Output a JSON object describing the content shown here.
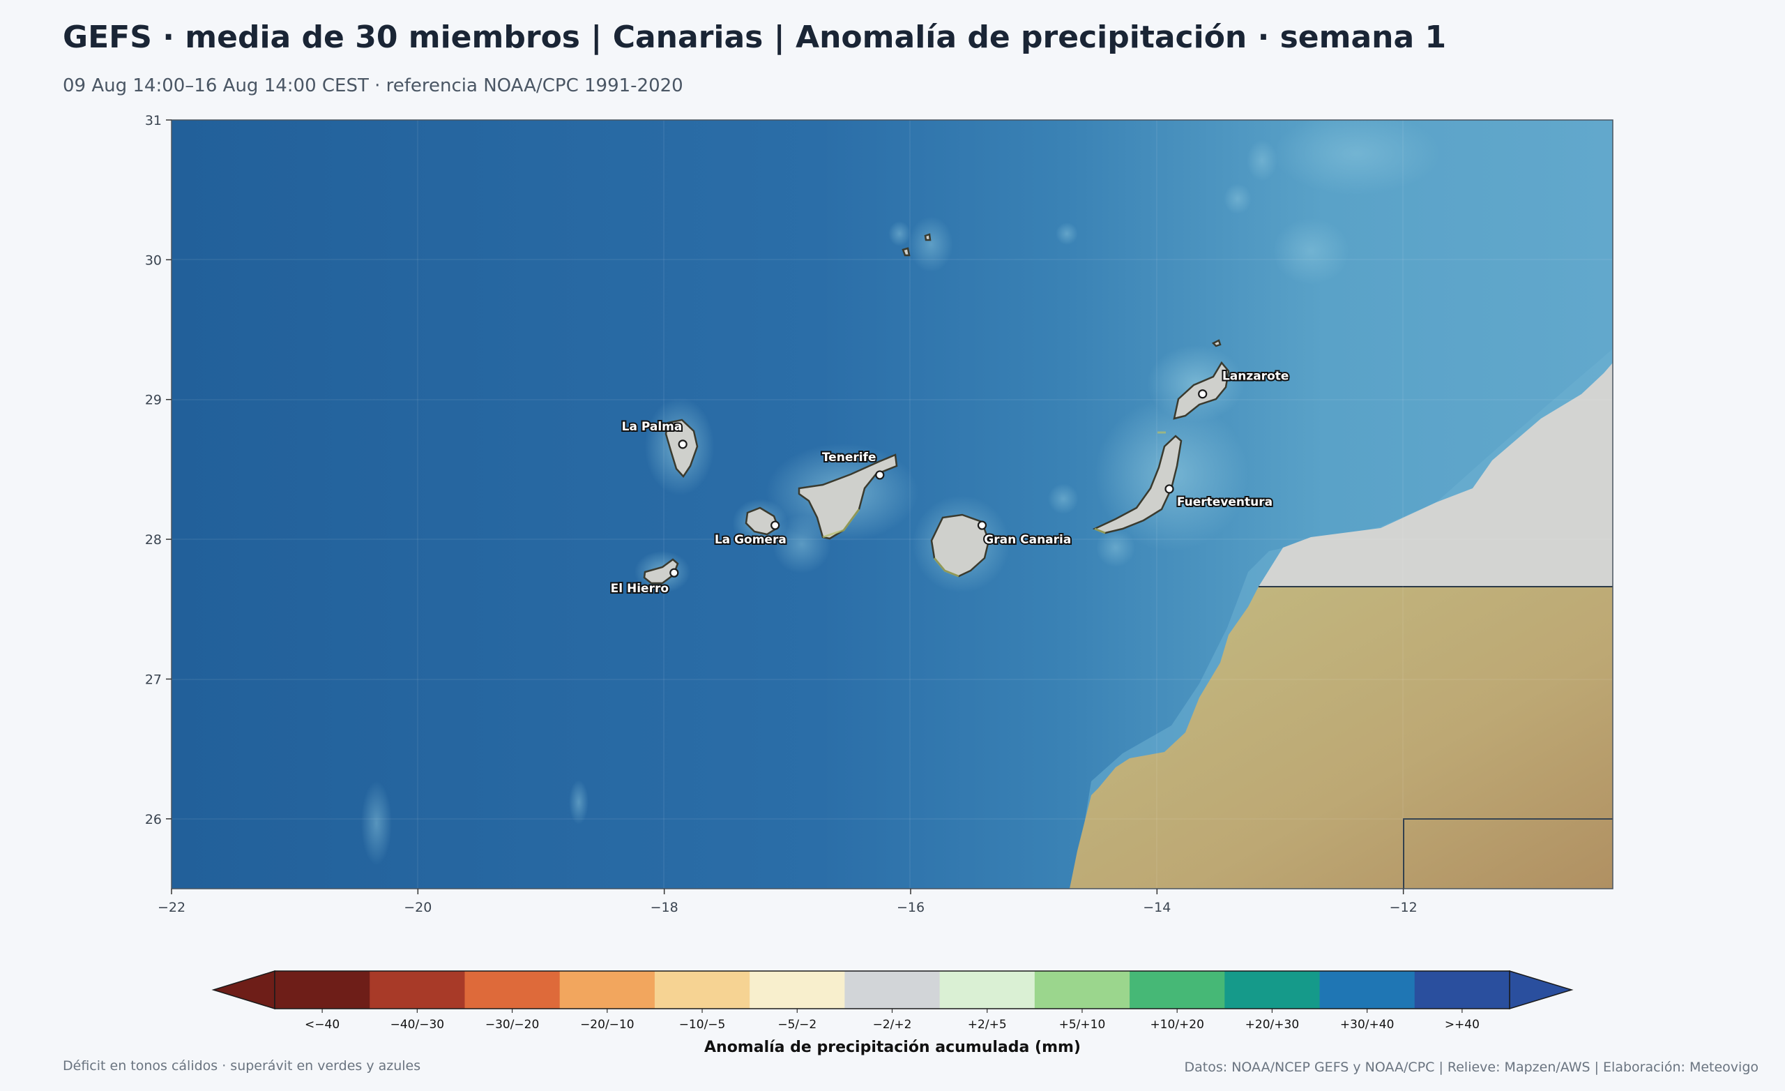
{
  "header": {
    "title": "GEFS · media de 30 miembros | Canarias | Anomalía de precipitación · semana 1",
    "subtitle": "09 Aug 14:00–16 Aug 14:00 CEST · referencia NOAA/CPC 1991-2020"
  },
  "map": {
    "extent": {
      "lon": [
        -22,
        -10.3
      ],
      "lat": [
        25.5,
        31
      ]
    },
    "x_ticks": [
      {
        "value": -22,
        "label": "−22"
      },
      {
        "value": -20,
        "label": "−20"
      },
      {
        "value": -18,
        "label": "−18"
      },
      {
        "value": -16,
        "label": "−16"
      },
      {
        "value": -14,
        "label": "−14"
      },
      {
        "value": -12,
        "label": "−12"
      }
    ],
    "y_ticks": [
      {
        "value": 31,
        "label": "31"
      },
      {
        "value": 30,
        "label": "30"
      },
      {
        "value": 29,
        "label": "29"
      },
      {
        "value": 28,
        "label": "28"
      },
      {
        "value": 27,
        "label": "27"
      },
      {
        "value": 26,
        "label": "26"
      }
    ],
    "colors": {
      "ocean_deep": "#22629a",
      "ocean_shelf": "#5fa6cb",
      "land_grey": "#d3d4d2",
      "desert": "#bfb07a",
      "border": "#2c3a48"
    },
    "islands": [
      {
        "name": "La Palma",
        "dot": [
          -17.85,
          28.68
        ],
        "label_anchor": [
          -18.1,
          28.78
        ]
      },
      {
        "name": "Tenerife",
        "dot": [
          -16.25,
          28.46
        ],
        "label_anchor": [
          -16.5,
          28.56
        ]
      },
      {
        "name": "La Gomera",
        "dot": [
          -17.1,
          28.1
        ],
        "label_anchor": [
          -17.3,
          27.97
        ]
      },
      {
        "name": "El Hierro",
        "dot": [
          -17.92,
          27.76
        ],
        "label_anchor": [
          -18.2,
          27.62
        ]
      },
      {
        "name": "Gran Canaria",
        "dot": [
          -15.42,
          28.1
        ],
        "label_anchor": [
          -15.05,
          27.97
        ]
      },
      {
        "name": "Lanzarote",
        "dot": [
          -13.63,
          29.04
        ],
        "label_anchor": [
          -13.2,
          29.14
        ]
      },
      {
        "name": "Fuerteventura",
        "dot": [
          -13.9,
          28.36
        ],
        "label_anchor": [
          -13.45,
          28.24
        ]
      }
    ]
  },
  "colorbar": {
    "title": "Anomalía de precipitación acumulada (mm)",
    "bins": [
      {
        "label": "<−40",
        "color": "#6e1e18"
      },
      {
        "label": "−40/−30",
        "color": "#a83a28"
      },
      {
        "label": "−30/−20",
        "color": "#de6a3a"
      },
      {
        "label": "−20/−10",
        "color": "#f2a65e"
      },
      {
        "label": "−10/−5",
        "color": "#f6d393"
      },
      {
        "label": "−5/−2",
        "color": "#f8efcd"
      },
      {
        "label": "−2/+2",
        "color": "#d2d5d8"
      },
      {
        "label": "+2/+5",
        "color": "#daf0d4"
      },
      {
        "label": "+5/+10",
        "color": "#9bd68d"
      },
      {
        "label": "+10/+20",
        "color": "#46b876"
      },
      {
        "label": "+20/+30",
        "color": "#159a8a"
      },
      {
        "label": "+30/+40",
        "color": "#1f76b4"
      },
      {
        "label": ">+40",
        "color": "#2a4f9e"
      }
    ],
    "under_color": "#6e1e18",
    "over_color": "#2a4f9e"
  },
  "footer": {
    "left": "Déficit en tonos cálidos · superávit en verdes y azules",
    "right": "Datos: NOAA/NCEP GEFS y NOAA/CPC | Relieve: Mapzen/AWS | Elaboración: Meteovigo"
  }
}
